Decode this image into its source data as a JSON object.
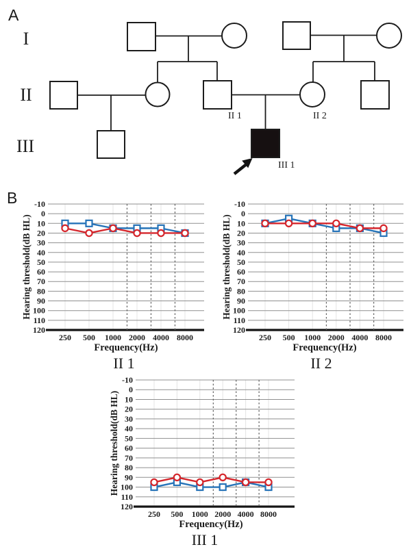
{
  "figure": {
    "panel_a_label": "A",
    "panel_b_label": "B"
  },
  "pedigree": {
    "generation_labels": [
      "I",
      "II",
      "III"
    ],
    "individuals": [
      {
        "id": "I-1",
        "generation": "I",
        "sex": "male",
        "affected": false
      },
      {
        "id": "I-2",
        "generation": "I",
        "sex": "female",
        "affected": false
      },
      {
        "id": "I-3",
        "generation": "I",
        "sex": "male",
        "affected": false
      },
      {
        "id": "I-4",
        "generation": "I",
        "sex": "female",
        "affected": false
      },
      {
        "id": "II-a",
        "generation": "II",
        "sex": "male",
        "affected": false
      },
      {
        "id": "II-b",
        "generation": "II",
        "sex": "female",
        "affected": false
      },
      {
        "id": "II-1",
        "generation": "II",
        "sex": "male",
        "affected": false,
        "label": "II 1"
      },
      {
        "id": "II-2",
        "generation": "II",
        "sex": "female",
        "affected": false,
        "label": "II 2"
      },
      {
        "id": "II-c",
        "generation": "II",
        "sex": "male",
        "affected": false
      },
      {
        "id": "III-a",
        "generation": "III",
        "sex": "male",
        "affected": false
      },
      {
        "id": "III-1",
        "generation": "III",
        "sex": "male",
        "affected": true,
        "proband": true,
        "label": "III 1"
      }
    ],
    "proband_id": "III-1"
  },
  "chart_data": [
    {
      "id": "II-1",
      "type": "line",
      "title": "II 1",
      "xlabel": "Frequency(Hz)",
      "ylabel": "Hearing threshold(dB HL)",
      "categories": [
        "250",
        "500",
        "1000",
        "2000",
        "4000",
        "8000"
      ],
      "y_ticks": [
        -10,
        0,
        10,
        20,
        30,
        40,
        50,
        60,
        70,
        80,
        90,
        100,
        110,
        120
      ],
      "ylim": [
        -10,
        120
      ],
      "y_axis_inverted": true,
      "grid": true,
      "dashed_vlines_hz": [
        1500,
        3000,
        6000
      ],
      "legend_position": "none",
      "series": [
        {
          "name": "blue-squares",
          "marker": "square",
          "color": "#2673b8",
          "values": [
            10,
            10,
            15,
            15,
            15,
            20
          ]
        },
        {
          "name": "red-circles",
          "marker": "circle",
          "color": "#d5262c",
          "values": [
            15,
            20,
            15,
            20,
            20,
            20
          ]
        }
      ]
    },
    {
      "id": "II-2",
      "type": "line",
      "title": "II 2",
      "xlabel": "Frequency(Hz)",
      "ylabel": "Hearing threshold(dB HL)",
      "categories": [
        "250",
        "500",
        "1000",
        "2000",
        "4000",
        "8000"
      ],
      "y_ticks": [
        -10,
        0,
        10,
        20,
        30,
        40,
        50,
        60,
        70,
        80,
        90,
        100,
        110,
        120
      ],
      "ylim": [
        -10,
        120
      ],
      "y_axis_inverted": true,
      "grid": true,
      "dashed_vlines_hz": [
        1500,
        3000,
        6000
      ],
      "legend_position": "none",
      "series": [
        {
          "name": "blue-squares",
          "marker": "square",
          "color": "#2673b8",
          "values": [
            10,
            5,
            10,
            15,
            15,
            20
          ]
        },
        {
          "name": "red-circles",
          "marker": "circle",
          "color": "#d5262c",
          "values": [
            10,
            10,
            10,
            10,
            15,
            15
          ]
        }
      ]
    },
    {
      "id": "III-1",
      "type": "line",
      "title": "III 1",
      "xlabel": "Frequency(Hz)",
      "ylabel": "Hearing threshold(dB HL)",
      "categories": [
        "250",
        "500",
        "1000",
        "2000",
        "4000",
        "8000"
      ],
      "y_ticks": [
        -10,
        0,
        10,
        20,
        30,
        40,
        50,
        60,
        70,
        80,
        90,
        100,
        110,
        120
      ],
      "ylim": [
        -10,
        120
      ],
      "y_axis_inverted": true,
      "grid": true,
      "dashed_vlines_hz": [
        1500,
        3000,
        6000
      ],
      "legend_position": "none",
      "series": [
        {
          "name": "blue-squares",
          "marker": "square",
          "color": "#2673b8",
          "values": [
            100,
            95,
            100,
            100,
            95,
            100
          ]
        },
        {
          "name": "red-circles",
          "marker": "circle",
          "color": "#d5262c",
          "values": [
            95,
            90,
            95,
            90,
            95,
            95
          ]
        }
      ]
    }
  ],
  "colors": {
    "blue_series": "#2673b8",
    "red_series": "#d5262c",
    "affected_fill": "#161011",
    "pedigree_line": "#1c1c1c",
    "grid_line": "#8f8f8f",
    "dashed_grid_line": "#606060",
    "faint_grid_line": "#e4e4e4",
    "axis_line": "#151515"
  }
}
